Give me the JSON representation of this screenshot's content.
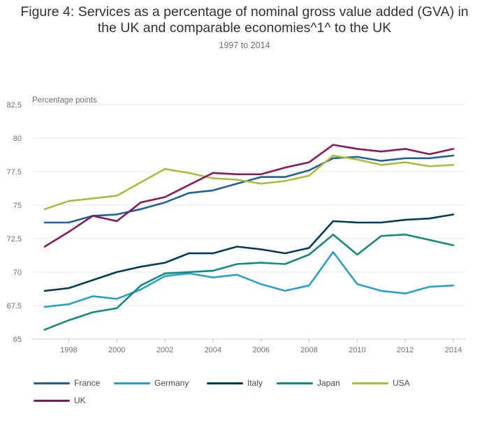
{
  "chart_data": {
    "type": "line",
    "title": "Figure 4: Services as a percentage of nominal gross value added (GVA) in the UK and comparable economies^1^ to the UK",
    "subtitle": "1997 to 2014",
    "ylabel": "Percentage points",
    "xlabel": "",
    "x": [
      1997,
      1998,
      1999,
      2000,
      2001,
      2002,
      2003,
      2004,
      2005,
      2006,
      2007,
      2008,
      2009,
      2010,
      2011,
      2012,
      2013,
      2014
    ],
    "x_ticks": [
      1998,
      2000,
      2002,
      2004,
      2006,
      2008,
      2010,
      2012,
      2014
    ],
    "y_ticks": [
      65,
      67.5,
      70,
      72.5,
      75,
      77.5,
      80,
      82.5
    ],
    "y_tick_labels": [
      "65",
      "67.5",
      "70",
      "72.5",
      "75",
      "77.5",
      "80",
      "82.5"
    ],
    "ylim": [
      65,
      82.5
    ],
    "xlim": [
      1997,
      2014
    ],
    "grid": true,
    "legend_position": "bottom",
    "series": [
      {
        "name": "France",
        "color": "#206095",
        "values": [
          73.7,
          73.7,
          74.2,
          74.3,
          74.7,
          75.2,
          75.9,
          76.1,
          76.6,
          77.1,
          77.1,
          77.6,
          78.5,
          78.6,
          78.3,
          78.5,
          78.5,
          78.7
        ]
      },
      {
        "name": "Germany",
        "color": "#27a0cc",
        "values": [
          67.4,
          67.6,
          68.2,
          68.0,
          68.7,
          69.7,
          69.9,
          69.6,
          69.8,
          69.1,
          68.6,
          69.0,
          71.5,
          69.1,
          68.6,
          68.4,
          68.9,
          69.0
        ]
      },
      {
        "name": "Italy",
        "color": "#003c57",
        "values": [
          68.6,
          68.8,
          69.4,
          70.0,
          70.4,
          70.7,
          71.4,
          71.4,
          71.9,
          71.7,
          71.4,
          71.8,
          73.8,
          73.7,
          73.7,
          73.9,
          74.0,
          74.3
        ]
      },
      {
        "name": "Japan",
        "color": "#118c7b",
        "values": [
          65.7,
          66.4,
          67.0,
          67.3,
          69.0,
          69.9,
          70.0,
          70.1,
          70.6,
          70.7,
          70.6,
          71.3,
          72.8,
          71.3,
          72.7,
          72.8,
          72.4,
          72.0
        ]
      },
      {
        "name": "USA",
        "color": "#a8bd3a",
        "values": [
          74.7,
          75.3,
          75.5,
          75.7,
          76.7,
          77.7,
          77.4,
          77.0,
          76.9,
          76.6,
          76.8,
          77.2,
          78.7,
          78.4,
          78.0,
          78.2,
          77.9,
          78.0
        ]
      },
      {
        "name": "UK",
        "color": "#871a5b",
        "values": [
          71.9,
          73.0,
          74.2,
          73.8,
          75.2,
          75.6,
          76.5,
          77.4,
          77.3,
          77.3,
          77.8,
          78.2,
          79.5,
          79.2,
          79.0,
          79.2,
          78.8,
          79.2
        ]
      }
    ]
  }
}
